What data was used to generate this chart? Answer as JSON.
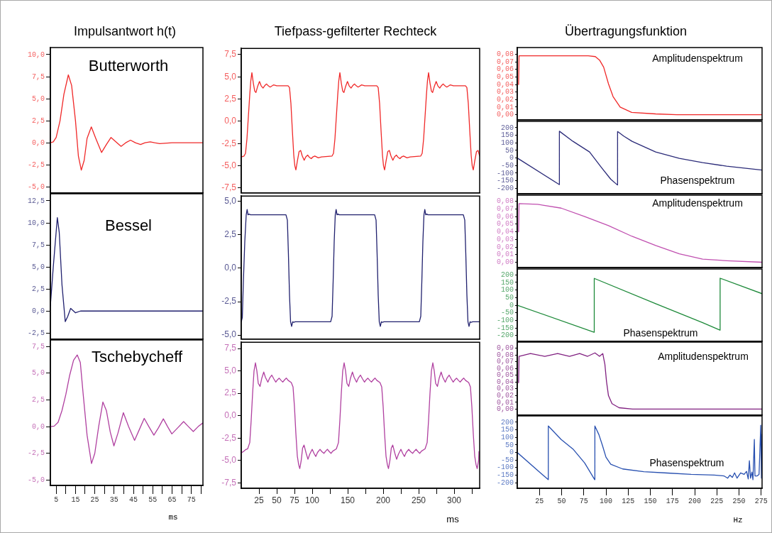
{
  "chart_data": [
    {
      "type": "line",
      "title": "Impulsantwort h(t)",
      "annotations": [
        "Butterworth"
      ],
      "tick_labels": "y",
      "xlim": [
        2,
        81
      ],
      "ylim": [
        -5.7,
        10.8
      ],
      "yticks": [
        {
          "value": 10,
          "label": "10,0"
        },
        {
          "value": 7.5,
          "label": "7,5"
        },
        {
          "value": 5,
          "label": "5,0"
        },
        {
          "value": 2.5,
          "label": "2,5"
        },
        {
          "value": 0,
          "label": "0,0"
        },
        {
          "value": -2.5,
          "label": "-2,5"
        },
        {
          "value": -5,
          "label": "-5,0"
        }
      ],
      "x": [
        2,
        3.5,
        5,
        7,
        9,
        11.3,
        13,
        15,
        16.5,
        18,
        19.5,
        21,
        23.2,
        25.5,
        28.5,
        31,
        33.4,
        36,
        38.6,
        41,
        43.5,
        46,
        48.7,
        51,
        53.7,
        56,
        58.6,
        65,
        81
      ],
      "series": [
        {
          "color": "#f02828",
          "values": [
            0,
            0.1,
            0.6,
            2.5,
            5.5,
            7.7,
            6.5,
            2.5,
            -1.5,
            -3.1,
            -2,
            0.5,
            1.8,
            0.5,
            -1.1,
            -0.2,
            0.6,
            0.1,
            -0.4,
            0,
            0.3,
            0,
            -0.2,
            0,
            0.1,
            0,
            -0.1,
            0,
            0
          ]
        }
      ]
    },
    {
      "type": "line",
      "title": "Tiefpass-gefilterter Rechteck",
      "tick_labels": "y",
      "xlim": [
        0,
        336
      ],
      "ylim": [
        -8.05,
        8.2
      ],
      "yticks": [
        {
          "value": 7.5,
          "label": "7,5"
        },
        {
          "value": 5,
          "label": "5,0"
        },
        {
          "value": 2.5,
          "label": "2,5"
        },
        {
          "value": 0,
          "label": "0,0"
        },
        {
          "value": -2.5,
          "label": "-2,5"
        },
        {
          "value": -5,
          "label": "-5,0"
        },
        {
          "value": -7.5,
          "label": "-7,5"
        }
      ],
      "x": [
        0,
        4,
        6,
        8,
        10,
        12,
        13.5,
        15,
        17,
        19,
        20.7,
        23,
        25.7,
        28,
        30.7,
        33,
        35.7,
        38,
        40.7,
        45.7,
        50,
        66,
        68,
        70,
        72,
        74,
        75.5,
        77,
        79,
        81.5,
        83.7,
        86,
        88.7,
        91,
        93.7,
        96,
        98.7,
        101,
        103.7,
        108.7,
        113,
        128,
        130,
        132,
        134,
        136,
        137.5,
        139,
        141,
        143,
        144.7,
        147,
        149.7,
        152,
        154.7,
        157,
        159.7,
        162,
        164.7,
        169.7,
        174,
        191,
        193,
        195,
        197,
        199,
        200.5,
        202,
        204,
        206.5,
        208.7,
        211,
        213.7,
        216,
        218.7,
        221,
        223.7,
        226,
        228.7,
        233.7,
        238,
        253,
        255,
        257,
        259,
        261,
        262.5,
        264,
        266,
        268,
        269.7,
        272,
        274.7,
        277,
        279.7,
        282,
        284.7,
        287,
        289.7,
        294.7,
        299,
        316,
        318,
        320,
        322,
        324,
        325.5,
        327,
        329,
        331.5,
        333.7,
        336
      ],
      "series": [
        {
          "color": "#f02828",
          "values": [
            -4,
            -3.9,
            -3.6,
            -2,
            0.5,
            3,
            4.6,
            5.47,
            4.3,
            3.4,
            3.24,
            3.9,
            4.48,
            4,
            3.74,
            4,
            4.2,
            4,
            3.85,
            4.1,
            4,
            4,
            3.8,
            2,
            -1,
            -3.8,
            -5,
            -5.46,
            -4.5,
            -3.4,
            -3.28,
            -3.9,
            -4.38,
            -4,
            -3.8,
            -4.05,
            -4.2,
            -4,
            -3.9,
            -4.1,
            -4,
            -3.9,
            -3.6,
            -2,
            0.5,
            3,
            4.6,
            5.47,
            4.3,
            3.4,
            3.24,
            3.9,
            4.48,
            4,
            3.74,
            4,
            4.2,
            4,
            3.85,
            4.1,
            4,
            4,
            3.8,
            2,
            -1,
            -3.8,
            -5,
            -5.46,
            -4.5,
            -3.4,
            -3.28,
            -3.9,
            -4.38,
            -4,
            -3.8,
            -4.05,
            -4.2,
            -4,
            -3.9,
            -4.1,
            -4,
            -3.9,
            -3.6,
            -2,
            0.5,
            3,
            4.6,
            5.47,
            4.3,
            3.4,
            3.24,
            3.9,
            4.48,
            4,
            3.74,
            4,
            4.2,
            4,
            3.85,
            4.1,
            4,
            4,
            3.8,
            2,
            -1,
            -3.8,
            -5,
            -5.46,
            -4.5,
            -3.4,
            -3.28,
            -3.9
          ]
        }
      ]
    },
    {
      "type": "line",
      "title": "Übertragungsfunktion",
      "annotations": [
        "Amplitudenspektrum"
      ],
      "tick_labels": "y",
      "xlim": [
        0,
        276
      ],
      "ylim": [
        -0.007,
        0.089
      ],
      "yticks": [
        {
          "value": 0.08,
          "label": "0,08"
        },
        {
          "value": 0.07,
          "label": "0,07"
        },
        {
          "value": 0.06,
          "label": "0,06"
        },
        {
          "value": 0.05,
          "label": "0,05"
        },
        {
          "value": 0.04,
          "label": "0,04"
        },
        {
          "value": 0.03,
          "label": "0,03"
        },
        {
          "value": 0.02,
          "label": "0,02"
        },
        {
          "value": 0.01,
          "label": "0,01"
        },
        {
          "value": 0,
          "label": "0,00"
        }
      ],
      "x": [
        1.5,
        2,
        80,
        88,
        93,
        97.4,
        102.8,
        108,
        116,
        129,
        156,
        180,
        276
      ],
      "series": [
        {
          "color": "#f02828",
          "values": [
            0.04,
            0.078,
            0.078,
            0.077,
            0.072,
            0.063,
            0.041,
            0.024,
            0.01,
            0.003,
            0.001,
            0,
            0
          ]
        }
      ]
    },
    {
      "type": "line",
      "annotations": [
        "Phasenspektrum"
      ],
      "tick_labels": "y",
      "xlim": [
        0,
        276
      ],
      "ylim": [
        -236,
        242
      ],
      "yticks": [
        200,
        150,
        100,
        50,
        0,
        -50,
        -100,
        -150,
        -200
      ],
      "x": [
        0,
        47.3,
        47.5,
        62.8,
        81.5,
        94.8,
        105.4,
        112.9,
        113.1,
        120,
        129.4,
        156,
        182.7,
        209,
        236,
        276
      ],
      "series": [
        {
          "color": "#2a2a78",
          "values": [
            0,
            -175,
            177,
            110,
            40,
            -62,
            -140,
            -178,
            175,
            145,
            110,
            40,
            -2,
            -30,
            -54,
            -80
          ]
        }
      ]
    },
    {
      "type": "line",
      "annotations": [
        "Bessel"
      ],
      "tick_labels": "y",
      "xlim": [
        2,
        81
      ],
      "ylim": [
        -3.2,
        13.3
      ],
      "yticks": [
        {
          "value": 12.5,
          "label": "12,5"
        },
        {
          "value": 10,
          "label": "10,0"
        },
        {
          "value": 7.5,
          "label": "7,5"
        },
        {
          "value": 5,
          "label": "5,0"
        },
        {
          "value": 2.5,
          "label": "2,5"
        },
        {
          "value": 0,
          "label": "0,0"
        },
        {
          "value": -2.5,
          "label": "-2,5"
        }
      ],
      "x": [
        2,
        3.5,
        5.6,
        6.6,
        8,
        9.7,
        11,
        12.5,
        15,
        17.6,
        20,
        81
      ],
      "series": [
        {
          "color": "#20206e",
          "values": [
            0.6,
            5,
            10.6,
            8.9,
            3,
            -1.2,
            -0.6,
            0.3,
            -0.2,
            0,
            0,
            0
          ]
        }
      ]
    },
    {
      "type": "line",
      "tick_labels": "y",
      "xlim": [
        0,
        336
      ],
      "ylim": [
        -5.3,
        5.4
      ],
      "yticks": [
        {
          "value": 5,
          "label": "5,0"
        },
        {
          "value": 2.5,
          "label": "2,5"
        },
        {
          "value": 0,
          "label": "0,0"
        },
        {
          "value": -2.5,
          "label": "-2,5"
        },
        {
          "value": -5,
          "label": "-5,0"
        }
      ],
      "x": [
        0,
        1.5,
        3,
        5,
        7,
        8.3,
        9.5,
        11,
        13,
        63,
        65,
        66.5,
        68,
        69.5,
        71,
        72.5,
        74,
        76,
        126,
        128,
        129.5,
        131,
        132.5,
        133.7,
        135,
        136.5,
        138,
        188,
        190,
        191.5,
        193,
        194.5,
        196,
        197.5,
        199,
        201,
        251,
        253,
        254.5,
        256,
        257.5,
        258.7,
        260,
        261.5,
        263,
        313,
        315,
        316.5,
        318,
        319.5,
        321,
        322.5,
        324,
        326,
        336
      ],
      "series": [
        {
          "color": "#20206e",
          "values": [
            -4,
            -3.7,
            -1,
            2,
            4,
            4.4,
            4,
            4.05,
            4,
            4,
            3.6,
            1,
            -2,
            -4,
            -4.35,
            -4,
            -4.05,
            -4,
            -4,
            -3.6,
            -1,
            2,
            4,
            4.4,
            4,
            4.05,
            4,
            4,
            3.6,
            1,
            -2,
            -4,
            -4.35,
            -4,
            -4.05,
            -4,
            -4,
            -3.6,
            -1,
            2,
            4,
            4.4,
            4,
            4.05,
            4,
            4,
            3.6,
            1,
            -2,
            -4,
            -4.35,
            -4,
            -4.05,
            -4,
            -4
          ]
        }
      ]
    },
    {
      "type": "line",
      "annotations": [
        "Amplitudenspektrum"
      ],
      "tick_labels": "y",
      "xlim": [
        0,
        276
      ],
      "ylim": [
        -0.007,
        0.088
      ],
      "yticks": [
        {
          "value": 0.08,
          "label": "0,08"
        },
        {
          "value": 0.07,
          "label": "0,07"
        },
        {
          "value": 0.06,
          "label": "0,06"
        },
        {
          "value": 0.05,
          "label": "0,05"
        },
        {
          "value": 0.04,
          "label": "0,04"
        },
        {
          "value": 0.03,
          "label": "0,03"
        },
        {
          "value": 0.02,
          "label": "0,02"
        },
        {
          "value": 0.01,
          "label": "0,01"
        },
        {
          "value": 0,
          "label": "0,00"
        }
      ],
      "x": [
        1.5,
        2,
        22.9,
        49.5,
        76,
        102.8,
        129.4,
        156,
        182.7,
        209,
        236,
        276
      ],
      "series": [
        {
          "color": "#c050b0",
          "values": [
            0.04,
            0.077,
            0.076,
            0.071,
            0.06,
            0.048,
            0.034,
            0.022,
            0.011,
            0.004,
            0.002,
            0
          ]
        }
      ]
    },
    {
      "type": "line",
      "annotations": [
        "Phasenspektrum"
      ],
      "tick_labels": "y",
      "xlim": [
        0,
        276
      ],
      "ylim": [
        -239,
        239
      ],
      "yticks": [
        200,
        150,
        100,
        50,
        0,
        -50,
        -100,
        -150,
        -200
      ],
      "x": [
        0,
        86.6,
        86.8,
        156,
        209,
        228.5,
        228.7,
        276
      ],
      "series": [
        {
          "color": "#1e8a3a",
          "values": [
            0,
            -179,
            177,
            10,
            -115,
            -165,
            178,
            76
          ]
        }
      ]
    },
    {
      "type": "line",
      "annotations": [
        "Tschebycheff"
      ],
      "xlabel": "ms",
      "xlim": [
        2,
        81
      ],
      "ylim": [
        -5.5,
        8.1
      ],
      "xticks": [
        5,
        {
          "value": 10,
          "label": null
        },
        15,
        {
          "value": 20,
          "label": null
        },
        25,
        {
          "value": 30,
          "label": null
        },
        35,
        {
          "value": 40,
          "label": null
        },
        45,
        {
          "value": 50,
          "label": null
        },
        55,
        {
          "value": 60,
          "label": null
        },
        65,
        {
          "value": 70,
          "label": null
        },
        75,
        {
          "value": 80,
          "label": null
        }
      ],
      "yticks": [
        {
          "value": 7.5,
          "label": "7,5"
        },
        {
          "value": 5,
          "label": "5,0"
        },
        {
          "value": 2.5,
          "label": "2,5"
        },
        {
          "value": 0,
          "label": "0,0"
        },
        {
          "value": -2.5,
          "label": "-2,5"
        },
        {
          "value": -5,
          "label": "-5,0"
        }
      ],
      "x": [
        2,
        4,
        6,
        8,
        10,
        12,
        14,
        15.9,
        17.5,
        19,
        21,
        23.3,
        25,
        27,
        29.2,
        31,
        33,
        34.9,
        37,
        39.8,
        42.5,
        45.6,
        48,
        50.6,
        53,
        55.6,
        58,
        60.5,
        62.7,
        64.9,
        68,
        71,
        73.5,
        76,
        78.5,
        81
      ],
      "series": [
        {
          "color": "#b040a0",
          "values": [
            0,
            0.05,
            0.4,
            1.5,
            3,
            4.8,
            6.2,
            6.7,
            6,
            3,
            -0.8,
            -3.45,
            -2.5,
            0,
            2.3,
            1.5,
            -0.5,
            -1.8,
            -0.6,
            1.3,
            0,
            -1.28,
            -0.3,
            0.77,
            0,
            -0.8,
            -0.1,
            0.73,
            0,
            -0.68,
            -0.1,
            0.47,
            0,
            -0.46,
            0,
            0.35
          ]
        }
      ]
    },
    {
      "type": "line",
      "xlabel": "ms",
      "xlim": [
        0,
        336
      ],
      "ylim": [
        -8.1,
        8.2
      ],
      "xticks": [
        25,
        50,
        75,
        100,
        {
          "value": 125,
          "label": null
        },
        150,
        {
          "value": 175,
          "label": null
        },
        200,
        {
          "value": 225,
          "label": null
        },
        250,
        {
          "value": 275,
          "label": null
        },
        300,
        {
          "value": 325,
          "label": null
        }
      ],
      "yticks": [
        {
          "value": 7.5,
          "label": "7,5"
        },
        {
          "value": 5,
          "label": "5,0"
        },
        {
          "value": 2.5,
          "label": "2,5"
        },
        {
          "value": 0,
          "label": "0,0"
        },
        {
          "value": -2.5,
          "label": "-2,5"
        },
        {
          "value": -5,
          "label": "-5,0"
        },
        {
          "value": -7.5,
          "label": "-7,5"
        }
      ],
      "x": [
        0,
        3,
        6,
        9,
        12,
        14,
        16,
        18,
        20,
        22,
        24,
        26.5,
        29,
        31.7,
        34,
        37.5,
        40,
        43,
        46,
        48.7,
        51,
        53.5,
        56,
        58.5,
        61,
        63.5,
        66,
        70.5,
        73,
        75,
        77,
        79,
        81,
        82.5,
        84.5,
        86.5,
        88.5,
        91.5,
        94,
        96.5,
        100,
        102.5,
        105,
        107.5,
        111,
        113.5,
        116.5,
        119,
        121.5,
        124,
        126.5,
        129,
        134,
        137,
        139,
        141,
        143,
        145,
        147,
        149,
        151.5,
        154,
        156.7,
        159,
        162.5,
        165,
        168,
        171,
        173.7,
        176,
        178.5,
        181,
        183.5,
        186,
        188.5,
        191,
        195.5,
        198,
        200,
        202,
        204,
        206,
        207.5,
        209.5,
        211.5,
        213.5,
        216.5,
        219,
        221.5,
        225,
        227.5,
        230,
        232.5,
        236,
        238.5,
        241.5,
        244,
        246.5,
        249,
        251.5,
        254,
        259,
        262,
        264,
        266,
        268,
        270,
        272,
        274,
        276.5,
        279,
        281.7,
        284,
        287.5,
        290,
        293,
        296,
        298.7,
        301,
        303.5,
        306,
        308.5,
        311,
        313.5,
        316,
        320.5,
        323,
        325,
        327,
        329,
        331,
        332.5,
        334.5,
        335
      ],
      "series": [
        {
          "color": "#b040a0",
          "values": [
            -4.15,
            -4,
            -3.8,
            -3.7,
            -3,
            -0.5,
            2.5,
            5,
            5.9,
            5,
            3.6,
            3.27,
            4.2,
            4.87,
            4.3,
            3.74,
            4.2,
            4.53,
            4.1,
            3.75,
            4,
            4.19,
            3.95,
            3.75,
            4,
            4.2,
            3.95,
            3.7,
            3.2,
            1,
            -2,
            -4.5,
            -5.5,
            -5.9,
            -5,
            -3.6,
            -3.28,
            -4.2,
            -4.86,
            -4.3,
            -3.75,
            -4.2,
            -4.55,
            -4.1,
            -3.75,
            -4,
            -4.2,
            -3.95,
            -3.75,
            -4,
            -4.2,
            -3.95,
            -3.7,
            -3,
            -0.5,
            2.5,
            5,
            5.9,
            5,
            3.6,
            3.27,
            4.2,
            4.87,
            4.3,
            3.74,
            4.2,
            4.53,
            4.1,
            3.75,
            4,
            4.19,
            3.95,
            3.75,
            4,
            4.2,
            3.95,
            3.7,
            3.2,
            1,
            -2,
            -4.5,
            -5.5,
            -5.9,
            -5,
            -3.6,
            -3.28,
            -4.2,
            -4.86,
            -4.3,
            -3.75,
            -4.2,
            -4.55,
            -4.1,
            -3.75,
            -4,
            -4.2,
            -3.95,
            -3.75,
            -4,
            -4.2,
            -3.95,
            -3.7,
            -3,
            -0.5,
            2.5,
            5,
            5.9,
            5,
            3.6,
            3.27,
            4.2,
            4.87,
            4.3,
            3.74,
            4.2,
            4.53,
            4.1,
            3.75,
            4,
            4.19,
            3.95,
            3.75,
            4,
            4.2,
            3.95,
            3.7,
            3.2,
            1,
            -2,
            -4.5,
            -5.5,
            -5.9,
            -5,
            -4
          ]
        }
      ]
    },
    {
      "type": "line",
      "annotations": [
        "Amplitudenspektrum"
      ],
      "tick_labels": "y",
      "xlim": [
        0,
        276
      ],
      "ylim": [
        -0.009,
        0.099
      ],
      "yticks": [
        {
          "value": 0.09,
          "label": "0,09"
        },
        {
          "value": 0.08,
          "label": "0,08"
        },
        {
          "value": 0.07,
          "label": "0,07"
        },
        {
          "value": 0.06,
          "label": "0,06"
        },
        {
          "value": 0.05,
          "label": "0,05"
        },
        {
          "value": 0.04,
          "label": "0,04"
        },
        {
          "value": 0.03,
          "label": "0,03"
        },
        {
          "value": 0.02,
          "label": "0,02"
        },
        {
          "value": 0.01,
          "label": "0,01"
        },
        {
          "value": 0,
          "label": "0,00"
        }
      ],
      "x": [
        1.5,
        2,
        14.9,
        31,
        45.5,
        58.9,
        70.3,
        79.3,
        87.6,
        92.7,
        96.4,
        98.8,
        100.6,
        102.8,
        106.8,
        114.8,
        130,
        276
      ],
      "series": [
        {
          "color": "#802080",
          "values": [
            0.039,
            0.078,
            0.082,
            0.078,
            0.082,
            0.078,
            0.082,
            0.078,
            0.083,
            0.078,
            0.082,
            0.066,
            0.041,
            0.02,
            0.008,
            0.002,
            0,
            0
          ]
        }
      ]
    },
    {
      "type": "line",
      "annotations": [
        "Phasenspektrum"
      ],
      "xlabel": "Hz",
      "xlim": [
        0,
        276
      ],
      "ylim": [
        -237,
        242
      ],
      "xticks": [
        25,
        50,
        75,
        100,
        125,
        150,
        175,
        200,
        225,
        250,
        275
      ],
      "yticks": [
        200,
        150,
        100,
        50,
        0,
        -50,
        -100,
        -150,
        -200
      ],
      "x": [
        0,
        34.9,
        35,
        49.5,
        62.8,
        76,
        87.3,
        87.5,
        92.1,
        96,
        100,
        105.4,
        118.8,
        142.7,
        169.3,
        196,
        222,
        233,
        237.2,
        239.8,
        242.5,
        245,
        247.8,
        251.8,
        255.8,
        258.5,
        260.4,
        261.7,
        263,
        264.6,
        265.7,
        267.3,
        268,
        270.5,
        272.6,
        274.5,
        275.3,
        276
      ],
      "series": [
        {
          "color": "#2850b0",
          "values": [
            0,
            -180,
            175,
            86,
            23,
            -70,
            -180,
            175,
            117,
            47,
            -31,
            -78,
            -109,
            -127,
            -136,
            -145,
            -150,
            -155,
            -170,
            -150,
            -165,
            -135,
            -170,
            -135,
            -145,
            -125,
            -175,
            -55,
            -170,
            -130,
            -180,
            86,
            -155,
            -155,
            -145,
            180,
            -170,
            120
          ]
        }
      ]
    }
  ]
}
